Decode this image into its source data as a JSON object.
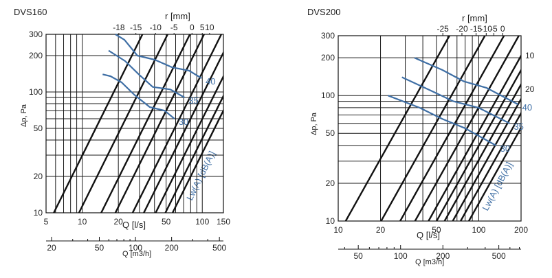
{
  "chart_data": [
    {
      "type": "line",
      "title": "DVS160",
      "xlabel": "Q [l/s]",
      "xlabel2": "Q [m3/h]",
      "ylabel": "Δp, Pa",
      "toplabel": "r [mm]",
      "xscale": "log",
      "yscale": "log",
      "xlim": [
        5,
        150
      ],
      "ylim": [
        10,
        300
      ],
      "xticks": [
        5,
        10,
        20,
        50,
        100,
        150
      ],
      "yticks": [
        10,
        20,
        50,
        100,
        200,
        300
      ],
      "x2ticks": [
        20,
        50,
        100,
        200,
        500
      ],
      "rticks": [
        -18,
        -15,
        -10,
        -5,
        0,
        5,
        10
      ],
      "grid": true,
      "damper_lines": {
        "slope": 2,
        "q_at_dp10": [
          5.8,
          9.4,
          14.4,
          18.9,
          26.3,
          32.6,
          40.9,
          49.3,
          56.6
        ],
        "legend_lines": [
          {
            "r": "-18",
            "q_at_top": 20.2
          },
          {
            "r": "-15",
            "q_at_top": 28.0
          },
          {
            "r": "-10",
            "q_at_top": 40.8
          },
          {
            "r": "-5",
            "q_at_top": 58.2
          },
          {
            "r": "0",
            "q_at_top": 82.1
          },
          {
            "r": "5",
            "q_at_top": 100
          },
          {
            "r": "10",
            "q_at_top": 115
          }
        ]
      },
      "series_label": "Lw(A) [dB(A)]",
      "series": [
        {
          "name": "40",
          "x": [
            18.9,
            22.5,
            28.8,
            40.2,
            56.1,
            77.8,
            98.6
          ],
          "y": [
            300,
            270,
            200,
            185,
            160,
            150,
            130
          ]
        },
        {
          "name": "35",
          "x": [
            16.6,
            19.3,
            22.8,
            29.6,
            38.7,
            54.2,
            71.1
          ],
          "y": [
            220,
            200,
            180,
            140,
            110,
            105,
            90
          ]
        },
        {
          "name": "30",
          "x": [
            14.8,
            17.2,
            21.3,
            27.1,
            36.5,
            48.6,
            58.7
          ],
          "y": [
            140,
            135,
            120,
            95,
            75,
            70,
            60
          ]
        }
      ]
    },
    {
      "type": "line",
      "title": "DVS200",
      "xlabel": "Q [l/s]",
      "xlabel2": "Q [m3/h]",
      "ylabel": "Δp, Pa",
      "toplabel": "r [mm]",
      "xscale": "log",
      "yscale": "log",
      "xlim": [
        10,
        200
      ],
      "ylim": [
        10,
        300
      ],
      "xticks": [
        10,
        20,
        50,
        100,
        200
      ],
      "yticks": [
        10,
        20,
        50,
        100,
        200,
        300
      ],
      "x2ticks": [
        50,
        100,
        200,
        500
      ],
      "rticks": [
        -25,
        -20,
        -15,
        -10,
        -5,
        0
      ],
      "grid": true,
      "damper_lines": {
        "slope": 2,
        "q_at_dp10": [
          11.3,
          20.2,
          27.6,
          35.2,
          43.9,
          50.1,
          57.1,
          65.3,
          74.3,
          85.0
        ],
        "legend_lines": [
          {
            "r": "-25",
            "q_at_top": 55.5
          },
          {
            "r": "-20",
            "q_at_top": 75.9
          },
          {
            "r": "-15",
            "q_at_top": 95.7
          },
          {
            "r": "-10",
            "q_at_top": 113
          },
          {
            "r": "-5",
            "q_at_top": 128
          },
          {
            "r": "0",
            "q_at_top": 148
          },
          {
            "r": "10",
            "q_at_top": 177
          },
          {
            "r": "20",
            "q_at_top": 200
          }
        ],
        "right_labels": [
          "10",
          "20"
        ]
      },
      "series_label": "Lw(A) [dB(A)]",
      "series": [
        {
          "name": "40",
          "x": [
            34.9,
            55.0,
            78.0,
            113.9,
            190.5
          ],
          "y": [
            200,
            160,
            130,
            115,
            85
          ]
        },
        {
          "name": "35",
          "x": [
            28.4,
            45.2,
            66.0,
            99.5,
            166.0
          ],
          "y": [
            140,
            110,
            90,
            80,
            60
          ]
        },
        {
          "name": "30",
          "x": [
            22.6,
            37.9,
            55.2,
            79.6,
            132.8
          ],
          "y": [
            100,
            80,
            65,
            55,
            40
          ]
        }
      ]
    }
  ]
}
